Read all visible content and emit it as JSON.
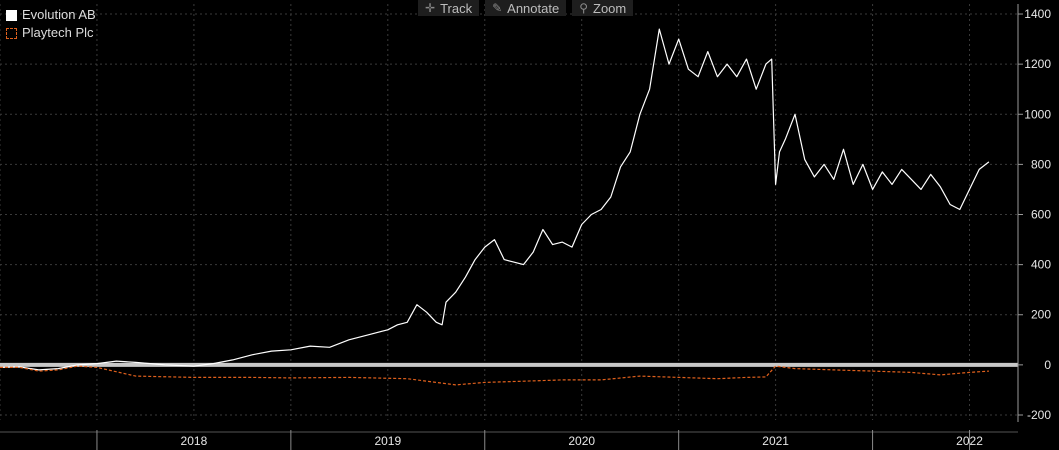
{
  "toolbar": {
    "track_label": "Track",
    "annotate_label": "Annotate",
    "zoom_label": "Zoom"
  },
  "colors": {
    "background": "#000000",
    "evolution": "#ffffff",
    "playtech": "#e0601c",
    "grid": "#3a3a3a",
    "zero_line": "#c8c8c8"
  },
  "chart_data": {
    "type": "line",
    "title": "",
    "xlabel": "",
    "ylabel": "",
    "ylim": [
      -220,
      1440
    ],
    "y_ticks": [
      -200,
      0,
      200,
      400,
      600,
      800,
      1000,
      1200,
      1400
    ],
    "x_range": [
      2017.5,
      2022.75
    ],
    "x_tick_labels": [
      "2018",
      "2019",
      "2020",
      "2021",
      "2022"
    ],
    "grid": true,
    "legend_position": "top-left",
    "series": [
      {
        "name": "Evolution AB",
        "style": "solid",
        "color": "#ffffff",
        "x": [
          2017.5,
          2017.6,
          2017.7,
          2017.8,
          2017.9,
          2018.0,
          2018.1,
          2018.2,
          2018.35,
          2018.5,
          2018.6,
          2018.7,
          2018.8,
          2018.9,
          2019.0,
          2019.1,
          2019.2,
          2019.3,
          2019.4,
          2019.5,
          2019.55,
          2019.6,
          2019.65,
          2019.7,
          2019.75,
          2019.78,
          2019.8,
          2019.85,
          2019.9,
          2019.95,
          2020.0,
          2020.05,
          2020.1,
          2020.15,
          2020.2,
          2020.25,
          2020.3,
          2020.35,
          2020.4,
          2020.45,
          2020.5,
          2020.55,
          2020.6,
          2020.65,
          2020.7,
          2020.75,
          2020.8,
          2020.85,
          2020.9,
          2020.95,
          2021.0,
          2021.05,
          2021.1,
          2021.15,
          2021.2,
          2021.25,
          2021.3,
          2021.35,
          2021.4,
          2021.45,
          2021.48,
          2021.5,
          2021.52,
          2021.55,
          2021.6,
          2021.65,
          2021.7,
          2021.75,
          2021.8,
          2021.85,
          2021.9,
          2021.95,
          2022.0,
          2022.05,
          2022.1,
          2022.15,
          2022.2,
          2022.25,
          2022.3,
          2022.35,
          2022.4,
          2022.45,
          2022.5,
          2022.55,
          2022.6
        ],
        "y": [
          -10,
          -8,
          -20,
          -15,
          0,
          5,
          15,
          10,
          0,
          -5,
          5,
          20,
          40,
          55,
          60,
          75,
          70,
          100,
          120,
          140,
          160,
          170,
          240,
          210,
          170,
          160,
          250,
          290,
          350,
          420,
          470,
          500,
          420,
          410,
          400,
          450,
          540,
          480,
          490,
          470,
          560,
          600,
          620,
          670,
          790,
          850,
          1000,
          1100,
          1340,
          1200,
          1300,
          1180,
          1150,
          1250,
          1150,
          1200,
          1150,
          1220,
          1100,
          1200,
          1220,
          720,
          850,
          900,
          1000,
          820,
          750,
          800,
          740,
          860,
          720,
          800,
          700,
          770,
          720,
          780,
          740,
          700,
          760,
          710,
          640,
          620,
          700,
          780,
          810
        ]
      },
      {
        "name": "Playtech Plc",
        "style": "dashed",
        "color": "#e0601c",
        "x": [
          2017.5,
          2017.6,
          2017.7,
          2017.8,
          2017.9,
          2018.0,
          2018.2,
          2018.5,
          2018.8,
          2019.0,
          2019.3,
          2019.6,
          2019.75,
          2019.85,
          2020.0,
          2020.2,
          2020.4,
          2020.6,
          2020.8,
          2021.0,
          2021.2,
          2021.35,
          2021.45,
          2021.5,
          2021.6,
          2021.8,
          2022.0,
          2022.2,
          2022.35,
          2022.5,
          2022.6
        ],
        "y": [
          -10,
          -10,
          -25,
          -20,
          -5,
          -10,
          -45,
          -50,
          -50,
          -52,
          -50,
          -55,
          -70,
          -80,
          -70,
          -65,
          -60,
          -60,
          -45,
          -50,
          -55,
          -50,
          -48,
          -5,
          -15,
          -20,
          -25,
          -30,
          -40,
          -30,
          -25
        ]
      }
    ]
  }
}
